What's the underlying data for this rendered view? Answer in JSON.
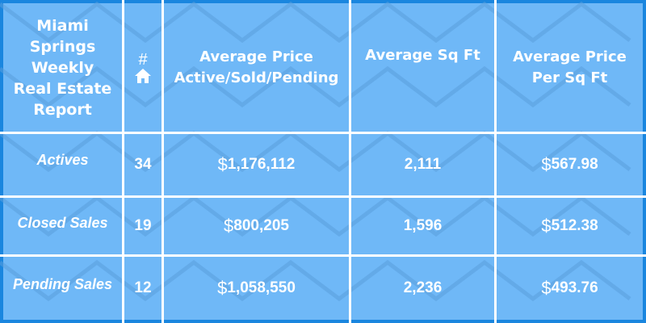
{
  "header": {
    "title": "Miami Springs Weekly Real Estate Report",
    "title_lines": [
      "Miami",
      "Springs",
      "Weekly",
      "Real Estate",
      "Report"
    ],
    "count_symbol": "#",
    "count_icon": "home-icon",
    "avg_price_lines": [
      "Average Price",
      "Active/Sold/Pending"
    ],
    "avg_sqft": "Average Sq Ft",
    "avg_ppsf_lines": [
      "Average Price",
      "Per Sq Ft"
    ]
  },
  "rows": [
    {
      "label": "Actives",
      "count": "34",
      "avg_price": "1,176,112",
      "avg_sqft": "2,111",
      "avg_ppsf": "567.98"
    },
    {
      "label": "Closed Sales",
      "count": "19",
      "avg_price": "800,205",
      "avg_sqft": "1,596",
      "avg_ppsf": "512.38"
    },
    {
      "label": "Pending Sales",
      "count": "12",
      "avg_price": "1,058,550",
      "avg_sqft": "2,236",
      "avg_ppsf": "493.76"
    }
  ],
  "currency": "$",
  "colors": {
    "border": "#1a86df",
    "cell": "#6fb8f7",
    "pattern": "#5a9fdc",
    "text": "#ffffff"
  }
}
